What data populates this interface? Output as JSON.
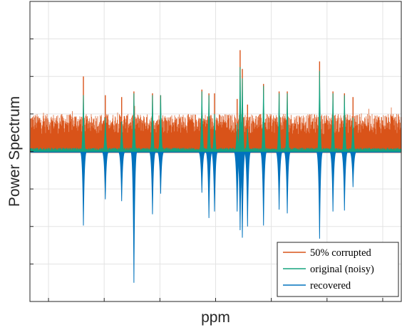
{
  "chart_data": {
    "type": "line",
    "title": "",
    "xlabel": "ppm",
    "ylabel": "Power Spectrum",
    "xlim": [
      0,
      1
    ],
    "ylim": [
      -0.8,
      0.8
    ],
    "grid": true,
    "x_ticks": [
      0.05,
      0.2,
      0.35,
      0.5,
      0.65,
      0.8,
      0.95
    ],
    "y_ticks": [
      -0.6,
      -0.4,
      -0.2,
      0,
      0.2,
      0.4,
      0.6
    ],
    "tick_labels_shown": false,
    "legend": {
      "position": "bottom-right",
      "entries": [
        {
          "label": "50% corrupted",
          "color": "#D95319"
        },
        {
          "label": "original (noisy)",
          "color": "#15A37F"
        },
        {
          "label": "recovered",
          "color": "#0072BD"
        }
      ]
    },
    "corrupted_noise_band": {
      "baseline": 0.0,
      "typical_max": 0.2
    },
    "original_noise_band": {
      "baseline": 0.0,
      "typical_max": 0.02
    },
    "peaks": [
      {
        "x": 0.144,
        "corrupted": 0.4,
        "original": 0.3,
        "recovered": -0.395
      },
      {
        "x": 0.203,
        "corrupted": 0.3,
        "original": 0.18,
        "recovered": -0.255
      },
      {
        "x": 0.247,
        "corrupted": 0.29,
        "original": 0.16,
        "recovered": -0.265
      },
      {
        "x": 0.28,
        "corrupted": 0.32,
        "original": 0.31,
        "recovered": -0.7
      },
      {
        "x": 0.33,
        "corrupted": 0.31,
        "original": 0.3,
        "recovered": -0.335
      },
      {
        "x": 0.352,
        "corrupted": 0.3,
        "original": 0.3,
        "recovered": -0.225
      },
      {
        "x": 0.463,
        "corrupted": 0.33,
        "original": 0.32,
        "recovered": -0.22
      },
      {
        "x": 0.482,
        "corrupted": 0.31,
        "original": 0.3,
        "recovered": -0.355
      },
      {
        "x": 0.497,
        "corrupted": 0.31,
        "original": 0.2,
        "recovered": -0.32
      },
      {
        "x": 0.558,
        "corrupted": 0.28,
        "original": 0.15,
        "recovered": -0.32
      },
      {
        "x": 0.566,
        "corrupted": 0.54,
        "original": 0.45,
        "recovered": -0.42
      },
      {
        "x": 0.572,
        "corrupted": 0.44,
        "original": 0.39,
        "recovered": -0.46
      },
      {
        "x": 0.586,
        "corrupted": 0.25,
        "original": 0.12,
        "recovered": -0.4
      },
      {
        "x": 0.629,
        "corrupted": 0.36,
        "original": 0.35,
        "recovered": -0.395
      },
      {
        "x": 0.671,
        "corrupted": 0.32,
        "original": 0.31,
        "recovered": -0.31
      },
      {
        "x": 0.693,
        "corrupted": 0.32,
        "original": 0.31,
        "recovered": -0.33
      },
      {
        "x": 0.78,
        "corrupted": 0.48,
        "original": 0.43,
        "recovered": -0.465
      },
      {
        "x": 0.816,
        "corrupted": 0.32,
        "original": 0.31,
        "recovered": -0.32
      },
      {
        "x": 0.847,
        "corrupted": 0.31,
        "original": 0.3,
        "recovered": -0.315
      },
      {
        "x": 0.87,
        "corrupted": 0.29,
        "original": 0.18,
        "recovered": -0.19
      }
    ]
  }
}
